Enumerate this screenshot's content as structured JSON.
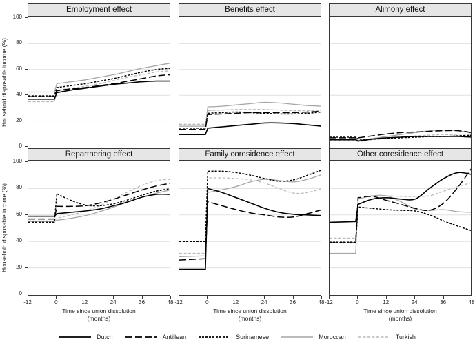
{
  "figure": {
    "background": "#ffffff",
    "border_color": "#383838",
    "titlebar_bg": "#e6e6e6",
    "grid_color": "#e0e0e0"
  },
  "axes": {
    "y_label": "Household disposable income (%)",
    "x_label_line1": "Time since union dissolution",
    "x_label_line2": "(months)",
    "y_ticks": [
      0,
      20,
      40,
      60,
      80,
      100
    ],
    "x_ticks": [
      -12,
      0,
      12,
      24,
      36,
      48
    ]
  },
  "legend": {
    "items": [
      {
        "label": "Dutch",
        "series": "Dutch"
      },
      {
        "label": "Antillean",
        "series": "Antillean"
      },
      {
        "label": "Surinamese",
        "series": "Surinamese"
      },
      {
        "label": "Moroccan",
        "series": "Moroccan"
      },
      {
        "label": "Turkish",
        "series": "Turkish"
      }
    ]
  },
  "series_styles": {
    "Dutch": {
      "color": "#000000",
      "dash": "",
      "width": 1.6
    },
    "Antillean": {
      "color": "#000000",
      "dash": "10,4",
      "width": 1.5
    },
    "Surinamese": {
      "color": "#000000",
      "dash": "3,2",
      "width": 1.5
    },
    "Moroccan": {
      "color": "#a6a6a6",
      "dash": "",
      "width": 1.3
    },
    "Turkish": {
      "color": "#bababa",
      "dash": "4,2.5",
      "width": 1.3
    }
  },
  "chart_data": [
    {
      "type": "line",
      "title": "Employment effect",
      "xlim": [
        -12,
        48
      ],
      "ylim": [
        0,
        100
      ],
      "grid_y": [
        20,
        40,
        60,
        80
      ],
      "x": [
        -12,
        -1,
        0,
        6,
        12,
        18,
        24,
        30,
        36,
        42,
        48
      ],
      "series": [
        {
          "name": "Dutch",
          "values": [
            37,
            37,
            42,
            44,
            45.5,
            47,
            48.5,
            49.5,
            50.5,
            51,
            51
          ]
        },
        {
          "name": "Antillean",
          "values": [
            39,
            39,
            43.5,
            45,
            46,
            47.5,
            49,
            51,
            53,
            55,
            56
          ]
        },
        {
          "name": "Surinamese",
          "values": [
            39.5,
            39.5,
            46,
            47.5,
            49,
            51,
            53,
            55.5,
            58,
            60,
            61
          ]
        },
        {
          "name": "Moroccan",
          "values": [
            42.5,
            42.5,
            49,
            50.5,
            52,
            54,
            56,
            58.5,
            61,
            63,
            65
          ]
        },
        {
          "name": "Turkish",
          "values": [
            35,
            35,
            44,
            45.5,
            47,
            49,
            51.5,
            54,
            56,
            58,
            59
          ]
        }
      ]
    },
    {
      "type": "line",
      "title": "Benefits effect",
      "xlim": [
        -12,
        48
      ],
      "ylim": [
        0,
        100
      ],
      "grid_y": [
        20,
        40,
        60,
        80
      ],
      "x": [
        -12,
        -1,
        0,
        6,
        12,
        18,
        24,
        30,
        36,
        42,
        48
      ],
      "series": [
        {
          "name": "Dutch",
          "values": [
            9.5,
            9.5,
            14.5,
            15.5,
            16.5,
            17.5,
            18.5,
            18.5,
            18,
            17,
            16
          ]
        },
        {
          "name": "Antillean",
          "values": [
            13.5,
            13.5,
            25,
            25.5,
            26,
            26.5,
            26.5,
            26.5,
            26.5,
            27,
            27.5
          ]
        },
        {
          "name": "Surinamese",
          "values": [
            14.5,
            14.5,
            26,
            26.5,
            27,
            26.5,
            26,
            25.5,
            25.5,
            26,
            27
          ]
        },
        {
          "name": "Moroccan",
          "values": [
            16,
            16,
            31,
            31.5,
            32.5,
            33.5,
            34.5,
            34,
            33,
            32,
            31.5
          ]
        },
        {
          "name": "Turkish",
          "values": [
            17.5,
            17.5,
            28,
            28.5,
            29,
            29,
            29,
            28.5,
            28,
            28,
            28
          ]
        }
      ]
    },
    {
      "type": "line",
      "title": "Alimony effect",
      "xlim": [
        -12,
        48
      ],
      "ylim": [
        0,
        100
      ],
      "grid_y": [
        20,
        40,
        60,
        80
      ],
      "x": [
        -12,
        -1,
        0,
        6,
        12,
        18,
        24,
        30,
        36,
        42,
        48
      ],
      "series": [
        {
          "name": "Dutch",
          "values": [
            5.5,
            5.5,
            4.5,
            6,
            7,
            7.5,
            8,
            8,
            8,
            8,
            7.5
          ]
        },
        {
          "name": "Antillean",
          "values": [
            7,
            7,
            7,
            8.5,
            10,
            11,
            11.5,
            12,
            12.5,
            12.5,
            11
          ]
        },
        {
          "name": "Surinamese",
          "values": [
            7.5,
            7.5,
            6,
            6,
            6.5,
            7,
            7.5,
            8,
            8,
            8.5,
            9
          ]
        },
        {
          "name": "Moroccan",
          "values": [
            6,
            6,
            5,
            6.5,
            8,
            9.5,
            11,
            12.5,
            13,
            12.5,
            10.5
          ]
        },
        {
          "name": "Turkish",
          "values": [
            5,
            5,
            4,
            5.5,
            6.5,
            7.5,
            8.5,
            9,
            9.5,
            9,
            9
          ]
        }
      ]
    },
    {
      "type": "line",
      "title": "Repartnering effect",
      "xlim": [
        -12,
        48
      ],
      "ylim": [
        0,
        100
      ],
      "grid_y": [
        20,
        40,
        60,
        80
      ],
      "x": [
        -12,
        -1,
        0,
        6,
        12,
        18,
        24,
        30,
        36,
        42,
        48
      ],
      "series": [
        {
          "name": "Dutch",
          "values": [
            59,
            59,
            61,
            62,
            63,
            64.5,
            67,
            70,
            73.5,
            75.5,
            75.5
          ]
        },
        {
          "name": "Antillean",
          "values": [
            57,
            57,
            66.5,
            66.5,
            67,
            69,
            72,
            75.5,
            79,
            82,
            84
          ]
        },
        {
          "name": "Surinamese",
          "values": [
            54.5,
            54.5,
            76,
            71,
            67.5,
            67,
            68.5,
            71.5,
            75,
            78,
            80
          ]
        },
        {
          "name": "Moroccan",
          "values": [
            55,
            55,
            56,
            57.5,
            59.5,
            62.5,
            66,
            70,
            73.5,
            76.5,
            79
          ]
        },
        {
          "name": "Turkish",
          "values": [
            55.5,
            55.5,
            57.5,
            60,
            63,
            67,
            72,
            77.5,
            82.5,
            86,
            87
          ]
        }
      ]
    },
    {
      "type": "line",
      "title": "Family coresidence effect",
      "xlim": [
        -12,
        48
      ],
      "ylim": [
        0,
        100
      ],
      "grid_y": [
        20,
        40,
        60,
        80
      ],
      "x": [
        -12,
        -1,
        0,
        6,
        12,
        18,
        24,
        30,
        36,
        42,
        48
      ],
      "series": [
        {
          "name": "Dutch",
          "values": [
            19,
            19,
            80,
            77,
            73,
            69,
            65,
            62,
            60.5,
            60,
            59.5
          ]
        },
        {
          "name": "Antillean",
          "values": [
            26,
            27,
            70,
            67,
            64,
            61.5,
            60,
            58.5,
            58.5,
            61,
            64
          ]
        },
        {
          "name": "Surinamese",
          "values": [
            40,
            40,
            93,
            93,
            92,
            90,
            87.5,
            85.5,
            86.5,
            90,
            94
          ]
        },
        {
          "name": "Moroccan",
          "values": [
            28.5,
            29,
            77,
            79,
            81.5,
            85,
            87,
            86,
            85,
            87,
            90.5
          ]
        },
        {
          "name": "Turkish",
          "values": [
            31,
            31,
            88,
            88,
            87.5,
            86.5,
            84,
            80,
            76.5,
            77,
            80
          ]
        }
      ]
    },
    {
      "type": "line",
      "title": "Other coresidence effect",
      "xlim": [
        -12,
        48
      ],
      "ylim": [
        0,
        100
      ],
      "grid_y": [
        20,
        40,
        60,
        80
      ],
      "x": [
        -12,
        -1,
        0,
        6,
        12,
        18,
        24,
        30,
        36,
        42,
        48
      ],
      "series": [
        {
          "name": "Dutch",
          "values": [
            54.5,
            55,
            68,
            72,
            73,
            72,
            72,
            80,
            87.5,
            92,
            90.5
          ]
        },
        {
          "name": "Antillean",
          "values": [
            39,
            39,
            73,
            74,
            71,
            68,
            65,
            63.5,
            69,
            81,
            96
          ]
        },
        {
          "name": "Surinamese",
          "values": [
            39.5,
            39.5,
            66,
            65,
            64,
            63.5,
            63,
            60,
            55.5,
            51.5,
            48
          ]
        },
        {
          "name": "Moroccan",
          "values": [
            31,
            31,
            72,
            74.5,
            74.5,
            70,
            64.5,
            63.5,
            64,
            62.5,
            62
          ]
        },
        {
          "name": "Turkish",
          "values": [
            42.5,
            42.5,
            72.5,
            74,
            74.5,
            74,
            74,
            74.5,
            78,
            81.5,
            84.5
          ]
        }
      ]
    }
  ]
}
